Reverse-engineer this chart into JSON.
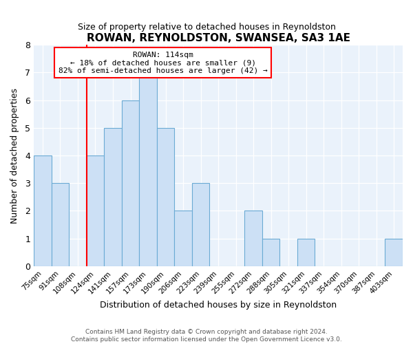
{
  "title": "ROWAN, REYNOLDSTON, SWANSEA, SA3 1AE",
  "subtitle": "Size of property relative to detached houses in Reynoldston",
  "xlabel": "Distribution of detached houses by size in Reynoldston",
  "ylabel": "Number of detached properties",
  "bin_labels": [
    "75sqm",
    "91sqm",
    "108sqm",
    "124sqm",
    "141sqm",
    "157sqm",
    "173sqm",
    "190sqm",
    "206sqm",
    "223sqm",
    "239sqm",
    "255sqm",
    "272sqm",
    "288sqm",
    "305sqm",
    "321sqm",
    "337sqm",
    "354sqm",
    "370sqm",
    "387sqm",
    "403sqm"
  ],
  "bar_heights": [
    4,
    3,
    0,
    4,
    5,
    6,
    7,
    5,
    2,
    3,
    0,
    0,
    2,
    1,
    0,
    1,
    0,
    0,
    0,
    0,
    1
  ],
  "bar_color": "#cce0f5",
  "bar_edge_color": "#6aaad4",
  "rowan_line_index": 2.5,
  "rowan_line_color": "red",
  "annotation_title": "ROWAN: 114sqm",
  "annotation_line1": "← 18% of detached houses are smaller (9)",
  "annotation_line2": "82% of semi-detached houses are larger (42) →",
  "annotation_box_color": "white",
  "annotation_box_edge": "red",
  "ylim": [
    0,
    8
  ],
  "yticks": [
    0,
    1,
    2,
    3,
    4,
    5,
    6,
    7,
    8
  ],
  "footer1": "Contains HM Land Registry data © Crown copyright and database right 2024.",
  "footer2": "Contains public sector information licensed under the Open Government Licence v3.0.",
  "bg_color": "#eaf2fb"
}
